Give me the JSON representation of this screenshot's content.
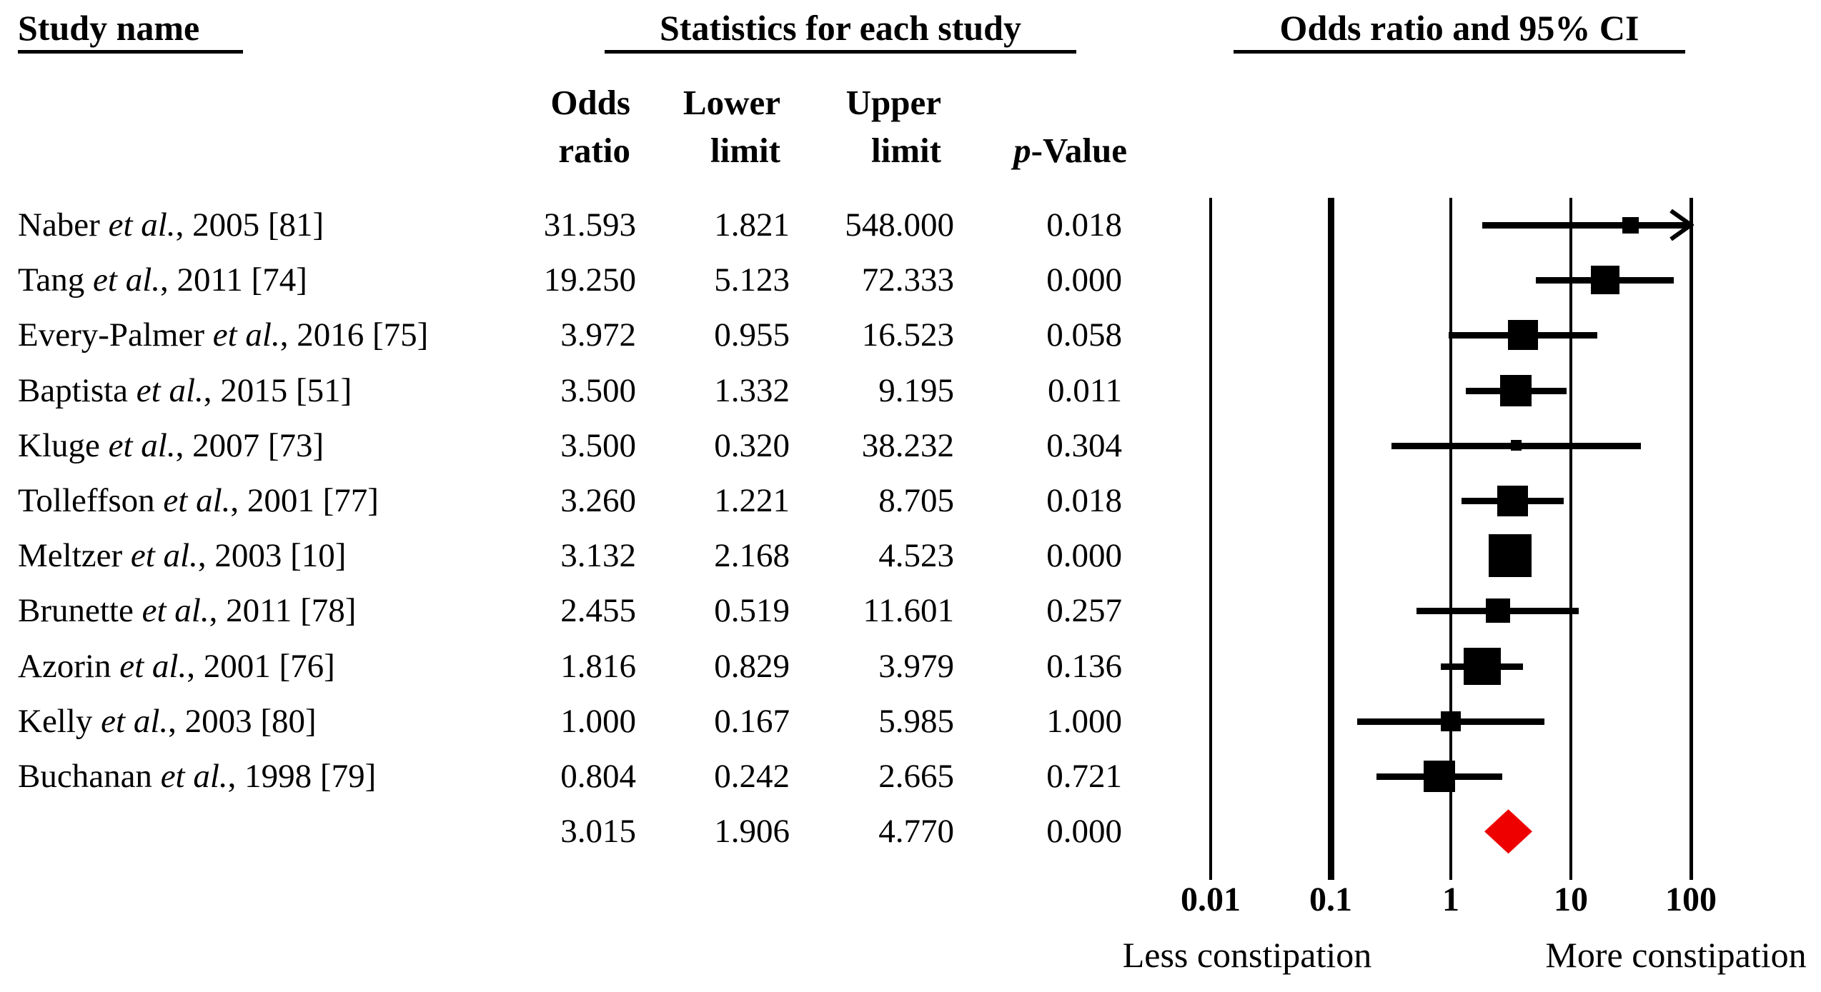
{
  "headers": {
    "study_name": "Study name",
    "statistics": "Statistics for each study",
    "or_ci": "Odds ratio and 95% CI"
  },
  "columns": {
    "odds_line1": "Odds",
    "odds_line2": "ratio",
    "lower_line1": "Lower",
    "lower_line2": "limit",
    "upper_line1": "Upper",
    "upper_line2": "limit",
    "p_italic": "p",
    "p_rest": "-Value"
  },
  "chart_data": {
    "type": "forest",
    "title": "",
    "x_axis": {
      "scale": "log10",
      "range": [
        0.01,
        100
      ],
      "tick_values": [
        0.01,
        0.1,
        1,
        10,
        100
      ],
      "ticks": [
        "0.01",
        "0.1",
        "1",
        "10",
        "100"
      ],
      "left_label": "Less constipation",
      "right_label": "More constipation"
    },
    "stat_columns": [
      "Odds ratio",
      "Lower limit",
      "Upper limit",
      "p-Value"
    ],
    "studies": [
      {
        "name_pre": "Naber ",
        "name_italic": "et al.",
        "name_post": ", 2005 [81]",
        "or": 31.593,
        "lower": 1.821,
        "upper": 548.0,
        "or_text": "31.593",
        "lower_text": "1.821",
        "upper_text": "548.000",
        "p_text": "0.018",
        "size": 23
      },
      {
        "name_pre": "Tang ",
        "name_italic": "et al.",
        "name_post": ", 2011 [74]",
        "or": 19.25,
        "lower": 5.123,
        "upper": 72.333,
        "or_text": "19.250",
        "lower_text": "5.123",
        "upper_text": "72.333",
        "p_text": "0.000",
        "size": 40
      },
      {
        "name_pre": "Every-Palmer ",
        "name_italic": "et al.",
        "name_post": ", 2016 [75]",
        "or": 3.972,
        "lower": 0.955,
        "upper": 16.523,
        "or_text": "3.972",
        "lower_text": "0.955",
        "upper_text": "16.523",
        "p_text": "0.058",
        "size": 42
      },
      {
        "name_pre": "Baptista ",
        "name_italic": "et al.",
        "name_post": ", 2015 [51]",
        "or": 3.5,
        "lower": 1.332,
        "upper": 9.195,
        "or_text": "3.500",
        "lower_text": "1.332",
        "upper_text": "9.195",
        "p_text": "0.011",
        "size": 44
      },
      {
        "name_pre": "Kluge ",
        "name_italic": "et al.",
        "name_post": ", 2007 [73]",
        "or": 3.5,
        "lower": 0.32,
        "upper": 38.232,
        "or_text": "3.500",
        "lower_text": "0.320",
        "upper_text": "38.232",
        "p_text": "0.304",
        "size": 15
      },
      {
        "name_pre": "Tolleffson ",
        "name_italic": "et al.",
        "name_post": ", 2001 [77]",
        "or": 3.26,
        "lower": 1.221,
        "upper": 8.705,
        "or_text": "3.260",
        "lower_text": "1.221",
        "upper_text": "8.705",
        "p_text": "0.018",
        "size": 43
      },
      {
        "name_pre": "Meltzer ",
        "name_italic": "et al.",
        "name_post": ", 2003 [10]",
        "or": 3.132,
        "lower": 2.168,
        "upper": 4.523,
        "or_text": "3.132",
        "lower_text": "2.168",
        "upper_text": "4.523",
        "p_text": "0.000",
        "size": 60
      },
      {
        "name_pre": "Brunette ",
        "name_italic": "et al.",
        "name_post": ", 2011 [78]",
        "or": 2.455,
        "lower": 0.519,
        "upper": 11.601,
        "or_text": "2.455",
        "lower_text": "0.519",
        "upper_text": "11.601",
        "p_text": "0.257",
        "size": 34
      },
      {
        "name_pre": "Azorin ",
        "name_italic": "et al.",
        "name_post": ", 2001 [76]",
        "or": 1.816,
        "lower": 0.829,
        "upper": 3.979,
        "or_text": "1.816",
        "lower_text": "0.829",
        "upper_text": "3.979",
        "p_text": "0.136",
        "size": 52
      },
      {
        "name_pre": "Kelly ",
        "name_italic": "et al.",
        "name_post": ", 2003 [80]",
        "or": 1.0,
        "lower": 0.167,
        "upper": 5.985,
        "or_text": "1.000",
        "lower_text": "0.167",
        "upper_text": "5.985",
        "p_text": "1.000",
        "size": 28
      },
      {
        "name_pre": "Buchanan ",
        "name_italic": "et al.",
        "name_post": ", 1998 [79]",
        "or": 0.804,
        "lower": 0.242,
        "upper": 2.665,
        "or_text": "0.804",
        "lower_text": "0.242",
        "upper_text": "2.665",
        "p_text": "0.721",
        "size": 44
      }
    ],
    "overall": {
      "or": 3.015,
      "lower": 1.906,
      "upper": 4.77,
      "or_text": "3.015",
      "lower_text": "1.906",
      "upper_text": "4.770",
      "p_text": "0.000"
    },
    "colors": {
      "marker": "#000000",
      "ci_line": "#000000",
      "gridline": "#000000",
      "diamond": "#ee0000"
    }
  }
}
